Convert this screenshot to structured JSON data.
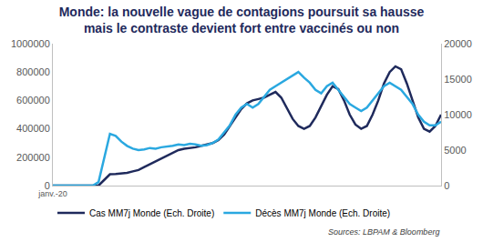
{
  "chart_data": {
    "type": "line",
    "title": "Monde: la nouvelle vague de contagions poursuit sa hausse mais le contraste devient fort entre vaccinés ou non",
    "source": "Sources: LBPAM & Bloomberg",
    "categories": [
      "janv.-20",
      null,
      null,
      null,
      null,
      null,
      null,
      null,
      null,
      null,
      null,
      null,
      null,
      null,
      null,
      null,
      null,
      null,
      null,
      null,
      null,
      null,
      null,
      null,
      null,
      null,
      null,
      null,
      null,
      null,
      null,
      null,
      null,
      null,
      null,
      null,
      null,
      null,
      null,
      null,
      null,
      null,
      null,
      null,
      null,
      null,
      null,
      null,
      null,
      null,
      null,
      null,
      null,
      null,
      null,
      null,
      null,
      null,
      null,
      null,
      null,
      null,
      null,
      null,
      null,
      null,
      null,
      null,
      null
    ],
    "series": [
      {
        "name": "Cas MM7j Monde (Ech. Droite)",
        "color": "#1f2a5c",
        "axis": "y",
        "values": [
          0,
          0,
          0,
          0,
          0,
          0,
          0,
          0,
          0,
          40000,
          80000,
          82000,
          85000,
          90000,
          100000,
          110000,
          130000,
          150000,
          170000,
          190000,
          210000,
          230000,
          250000,
          260000,
          265000,
          270000,
          280000,
          290000,
          300000,
          320000,
          360000,
          420000,
          480000,
          540000,
          580000,
          600000,
          610000,
          620000,
          640000,
          660000,
          620000,
          540000,
          470000,
          420000,
          400000,
          420000,
          480000,
          560000,
          640000,
          700000,
          680000,
          600000,
          500000,
          430000,
          400000,
          420000,
          500000,
          600000,
          720000,
          800000,
          840000,
          820000,
          720000,
          600000,
          480000,
          400000,
          380000,
          420000,
          500000
        ]
      },
      {
        "name": "Décès MM7j Monde (Ech. Droite)",
        "color": "#2aa8e0",
        "axis": "y2",
        "values": [
          0,
          0,
          0,
          0,
          0,
          0,
          0,
          0,
          500,
          4000,
          7300,
          7000,
          6200,
          5600,
          5200,
          5000,
          5100,
          5300,
          5200,
          5400,
          5500,
          5600,
          5800,
          5700,
          5900,
          5800,
          5600,
          5700,
          6000,
          6500,
          7500,
          8500,
          10000,
          11000,
          11500,
          11000,
          11500,
          12500,
          13500,
          14000,
          14500,
          15000,
          15500,
          16000,
          15200,
          14500,
          13500,
          13000,
          14000,
          14500,
          13500,
          12500,
          11500,
          11000,
          10500,
          11000,
          12000,
          13000,
          14000,
          14500,
          14000,
          13500,
          12500,
          11500,
          10000,
          9000,
          8500,
          8500,
          9000
        ]
      }
    ],
    "ylim": [
      0,
      1000000
    ],
    "yticks": [
      0,
      200000,
      400000,
      600000,
      800000,
      1000000
    ],
    "y2lim": [
      0,
      20000
    ],
    "y2ticks": [
      0,
      5000,
      10000,
      15000,
      20000
    ],
    "grid": false,
    "legend": "bottom"
  }
}
